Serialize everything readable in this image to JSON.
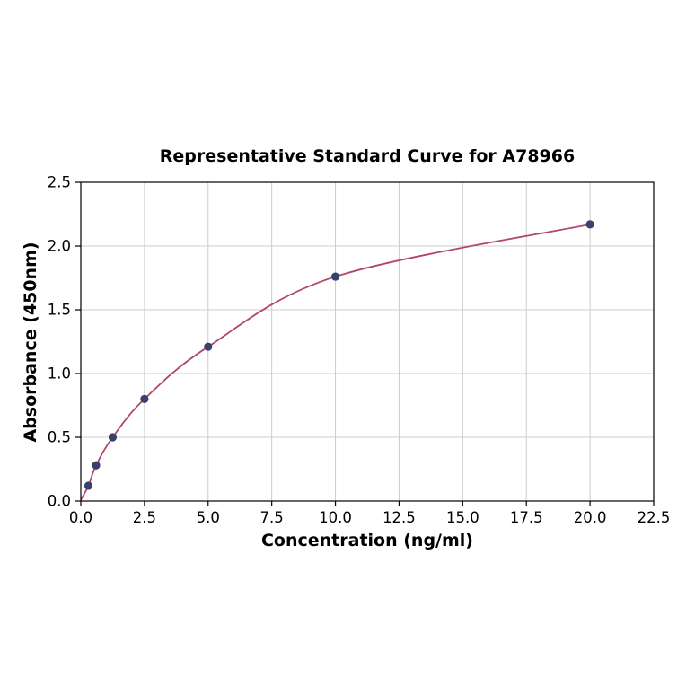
{
  "chart_data": {
    "type": "scatter",
    "title": "Representative Standard Curve for A78966",
    "xlabel": "Concentration (ng/ml)",
    "ylabel": "Absorbance (450nm)",
    "xlim": [
      0,
      22.5
    ],
    "ylim": [
      0,
      2.5
    ],
    "xtick_labels": [
      "0.0",
      "2.5",
      "5.0",
      "7.5",
      "10.0",
      "12.5",
      "15.0",
      "17.5",
      "20.0",
      "22.5"
    ],
    "ytick_labels": [
      "0.0",
      "0.5",
      "1.0",
      "1.5",
      "2.0",
      "2.5"
    ],
    "grid": true,
    "legend_position": "none",
    "points": [
      {
        "x": 0.3,
        "y": 0.12
      },
      {
        "x": 0.6,
        "y": 0.28
      },
      {
        "x": 1.25,
        "y": 0.5
      },
      {
        "x": 2.5,
        "y": 0.8
      },
      {
        "x": 5.0,
        "y": 1.21
      },
      {
        "x": 10.0,
        "y": 1.76
      },
      {
        "x": 20.0,
        "y": 2.17
      }
    ],
    "curve_start": {
      "x": 0.0,
      "y": 0.01
    },
    "colors": {
      "curve": "#b2466d",
      "points": "#3a3f6b",
      "grid": "#cccccc",
      "axis": "#000000",
      "background": "#ffffff"
    }
  }
}
